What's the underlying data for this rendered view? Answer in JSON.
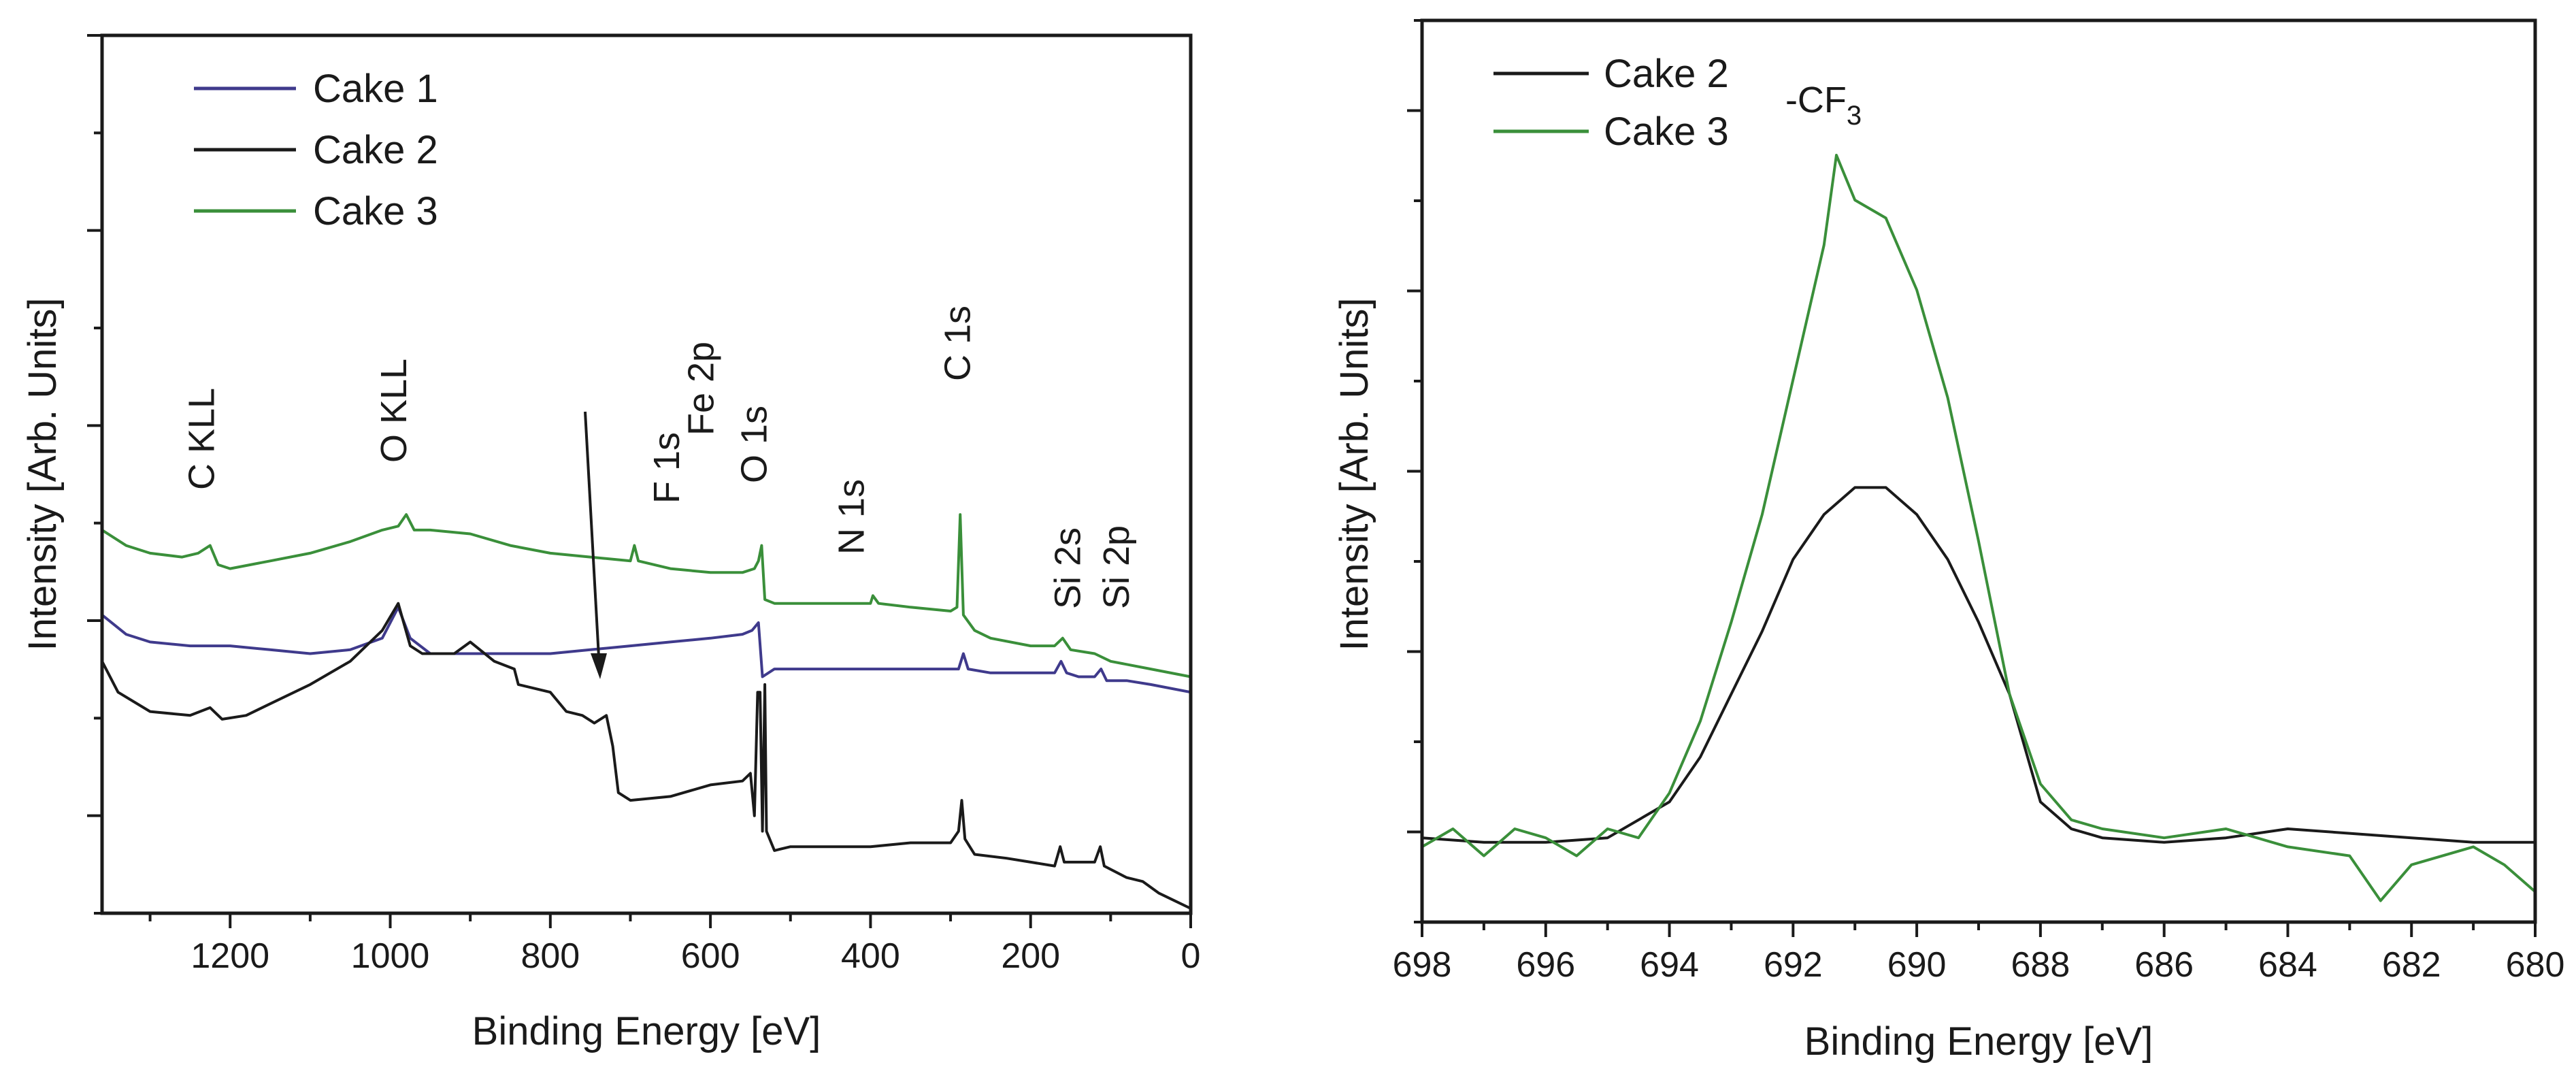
{
  "chart_data": [
    {
      "type": "line",
      "xlabel": "Binding Energy [eV]",
      "ylabel": "Intensity [Arb. Units]",
      "xlim": [
        1360,
        0
      ],
      "x_reversed": true,
      "x_ticks": [
        1200,
        1000,
        800,
        600,
        400,
        200,
        0
      ],
      "y_tick_labels_shown": false,
      "legend_position": "top-left",
      "series": [
        {
          "name": "Cake 1",
          "color": "#3f3a8c",
          "points": [
            [
              1360,
              0.38
            ],
            [
              1330,
              0.355
            ],
            [
              1300,
              0.345
            ],
            [
              1250,
              0.34
            ],
            [
              1200,
              0.34
            ],
            [
              1150,
              0.335
            ],
            [
              1100,
              0.33
            ],
            [
              1050,
              0.335
            ],
            [
              1010,
              0.35
            ],
            [
              990,
              0.39
            ],
            [
              975,
              0.35
            ],
            [
              950,
              0.33
            ],
            [
              900,
              0.33
            ],
            [
              850,
              0.33
            ],
            [
              800,
              0.33
            ],
            [
              750,
              0.335
            ],
            [
              700,
              0.34
            ],
            [
              650,
              0.345
            ],
            [
              600,
              0.35
            ],
            [
              560,
              0.355
            ],
            [
              548,
              0.36
            ],
            [
              540,
              0.37
            ],
            [
              535,
              0.3
            ],
            [
              520,
              0.31
            ],
            [
              450,
              0.31
            ],
            [
              400,
              0.31
            ],
            [
              350,
              0.31
            ],
            [
              300,
              0.31
            ],
            [
              290,
              0.31
            ],
            [
              284,
              0.33
            ],
            [
              278,
              0.31
            ],
            [
              250,
              0.305
            ],
            [
              200,
              0.305
            ],
            [
              170,
              0.305
            ],
            [
              162,
              0.32
            ],
            [
              155,
              0.305
            ],
            [
              140,
              0.3
            ],
            [
              120,
              0.3
            ],
            [
              112,
              0.31
            ],
            [
              105,
              0.295
            ],
            [
              80,
              0.295
            ],
            [
              50,
              0.29
            ],
            [
              0,
              0.28
            ]
          ]
        },
        {
          "name": "Cake 2",
          "color": "#1a1a1a",
          "points": [
            [
              1360,
              0.32
            ],
            [
              1340,
              0.28
            ],
            [
              1300,
              0.255
            ],
            [
              1250,
              0.25
            ],
            [
              1225,
              0.26
            ],
            [
              1210,
              0.245
            ],
            [
              1180,
              0.25
            ],
            [
              1150,
              0.265
            ],
            [
              1100,
              0.29
            ],
            [
              1050,
              0.32
            ],
            [
              1010,
              0.36
            ],
            [
              990,
              0.395
            ],
            [
              975,
              0.34
            ],
            [
              960,
              0.33
            ],
            [
              940,
              0.33
            ],
            [
              920,
              0.33
            ],
            [
              900,
              0.345
            ],
            [
              870,
              0.32
            ],
            [
              845,
              0.31
            ],
            [
              840,
              0.29
            ],
            [
              800,
              0.28
            ],
            [
              780,
              0.255
            ],
            [
              760,
              0.25
            ],
            [
              745,
              0.24
            ],
            [
              730,
              0.25
            ],
            [
              722,
              0.21
            ],
            [
              715,
              0.15
            ],
            [
              700,
              0.14
            ],
            [
              650,
              0.145
            ],
            [
              600,
              0.16
            ],
            [
              560,
              0.165
            ],
            [
              550,
              0.175
            ],
            [
              545,
              0.12
            ],
            [
              541,
              0.28
            ],
            [
              538,
              0.28
            ],
            [
              535,
              0.1
            ],
            [
              532,
              0.29
            ],
            [
              530,
              0.1
            ],
            [
              520,
              0.075
            ],
            [
              500,
              0.08
            ],
            [
              450,
              0.08
            ],
            [
              400,
              0.08
            ],
            [
              350,
              0.085
            ],
            [
              300,
              0.085
            ],
            [
              290,
              0.1
            ],
            [
              286,
              0.14
            ],
            [
              282,
              0.09
            ],
            [
              270,
              0.07
            ],
            [
              230,
              0.065
            ],
            [
              200,
              0.06
            ],
            [
              170,
              0.055
            ],
            [
              163,
              0.08
            ],
            [
              158,
              0.06
            ],
            [
              120,
              0.06
            ],
            [
              113,
              0.08
            ],
            [
              108,
              0.055
            ],
            [
              80,
              0.04
            ],
            [
              60,
              0.035
            ],
            [
              40,
              0.02
            ],
            [
              20,
              0.01
            ],
            [
              0,
              0.0
            ]
          ]
        },
        {
          "name": "Cake 3",
          "color": "#3a8f3a",
          "points": [
            [
              1360,
              0.49
            ],
            [
              1330,
              0.47
            ],
            [
              1300,
              0.46
            ],
            [
              1260,
              0.455
            ],
            [
              1240,
              0.46
            ],
            [
              1225,
              0.47
            ],
            [
              1215,
              0.445
            ],
            [
              1200,
              0.44
            ],
            [
              1150,
              0.45
            ],
            [
              1100,
              0.46
            ],
            [
              1050,
              0.475
            ],
            [
              1010,
              0.49
            ],
            [
              990,
              0.495
            ],
            [
              980,
              0.51
            ],
            [
              970,
              0.49
            ],
            [
              950,
              0.49
            ],
            [
              900,
              0.485
            ],
            [
              850,
              0.47
            ],
            [
              800,
              0.46
            ],
            [
              750,
              0.455
            ],
            [
              700,
              0.45
            ],
            [
              695,
              0.47
            ],
            [
              690,
              0.45
            ],
            [
              650,
              0.44
            ],
            [
              600,
              0.435
            ],
            [
              560,
              0.435
            ],
            [
              545,
              0.44
            ],
            [
              540,
              0.45
            ],
            [
              536,
              0.47
            ],
            [
              532,
              0.4
            ],
            [
              520,
              0.395
            ],
            [
              450,
              0.395
            ],
            [
              400,
              0.395
            ],
            [
              397,
              0.405
            ],
            [
              390,
              0.395
            ],
            [
              350,
              0.39
            ],
            [
              300,
              0.385
            ],
            [
              292,
              0.39
            ],
            [
              288,
              0.51
            ],
            [
              284,
              0.38
            ],
            [
              270,
              0.36
            ],
            [
              250,
              0.35
            ],
            [
              200,
              0.34
            ],
            [
              170,
              0.34
            ],
            [
              160,
              0.35
            ],
            [
              150,
              0.335
            ],
            [
              120,
              0.33
            ],
            [
              100,
              0.32
            ],
            [
              50,
              0.31
            ],
            [
              0,
              0.3
            ]
          ]
        }
      ],
      "annotations": [
        {
          "label": "C KLL",
          "x": 1220
        },
        {
          "label": "O KLL",
          "x": 980
        },
        {
          "label": "Fe 2p",
          "x": 728
        },
        {
          "label": "F 1s",
          "x": 690
        },
        {
          "label": "O 1s",
          "x": 530
        },
        {
          "label": "N 1s",
          "x": 400
        },
        {
          "label": "C 1s",
          "x": 286
        },
        {
          "label": "Si 2s",
          "x": 155
        },
        {
          "label": "Si 2p",
          "x": 103
        }
      ]
    },
    {
      "type": "line",
      "xlabel": "Binding Energy [eV]",
      "ylabel": "Intensity [Arb. Units]",
      "xlim": [
        698,
        680
      ],
      "x_reversed": true,
      "x_ticks": [
        698,
        696,
        694,
        692,
        690,
        688,
        686,
        684,
        682,
        680
      ],
      "y_tick_labels_shown": false,
      "legend_position": "top-left",
      "series": [
        {
          "name": "Cake 2",
          "color": "#1a1a1a",
          "points": [
            [
              698,
              0.09
            ],
            [
              697,
              0.085
            ],
            [
              696,
              0.085
            ],
            [
              695,
              0.09
            ],
            [
              694,
              0.13
            ],
            [
              693.5,
              0.18
            ],
            [
              693,
              0.25
            ],
            [
              692.5,
              0.32
            ],
            [
              692,
              0.4
            ],
            [
              691.5,
              0.45
            ],
            [
              691,
              0.48
            ],
            [
              690.5,
              0.48
            ],
            [
              690,
              0.45
            ],
            [
              689.5,
              0.4
            ],
            [
              689,
              0.33
            ],
            [
              688.5,
              0.25
            ],
            [
              688,
              0.13
            ],
            [
              687.5,
              0.1
            ],
            [
              687,
              0.09
            ],
            [
              686,
              0.085
            ],
            [
              685,
              0.09
            ],
            [
              684,
              0.1
            ],
            [
              683,
              0.095
            ],
            [
              682,
              0.09
            ],
            [
              681,
              0.085
            ],
            [
              680,
              0.085
            ]
          ]
        },
        {
          "name": "Cake 3",
          "color": "#3a8f3a",
          "points": [
            [
              698,
              0.08
            ],
            [
              697.5,
              0.1
            ],
            [
              697,
              0.07
            ],
            [
              696.5,
              0.1
            ],
            [
              696,
              0.09
            ],
            [
              695.5,
              0.07
            ],
            [
              695,
              0.1
            ],
            [
              694.5,
              0.09
            ],
            [
              694,
              0.14
            ],
            [
              693.5,
              0.22
            ],
            [
              693,
              0.33
            ],
            [
              692.5,
              0.45
            ],
            [
              692,
              0.6
            ],
            [
              691.5,
              0.75
            ],
            [
              691.3,
              0.85
            ],
            [
              691,
              0.8
            ],
            [
              690.5,
              0.78
            ],
            [
              690,
              0.7
            ],
            [
              689.5,
              0.58
            ],
            [
              689,
              0.42
            ],
            [
              688.5,
              0.25
            ],
            [
              688,
              0.15
            ],
            [
              687.5,
              0.11
            ],
            [
              687,
              0.1
            ],
            [
              686,
              0.09
            ],
            [
              685,
              0.1
            ],
            [
              684,
              0.08
            ],
            [
              683,
              0.07
            ],
            [
              682.5,
              0.02
            ],
            [
              682,
              0.06
            ],
            [
              681,
              0.08
            ],
            [
              680.5,
              0.06
            ],
            [
              680,
              0.03
            ]
          ]
        }
      ],
      "annotations": [
        {
          "label": "-CF",
          "sub": "3",
          "x": 691.3
        }
      ]
    }
  ]
}
